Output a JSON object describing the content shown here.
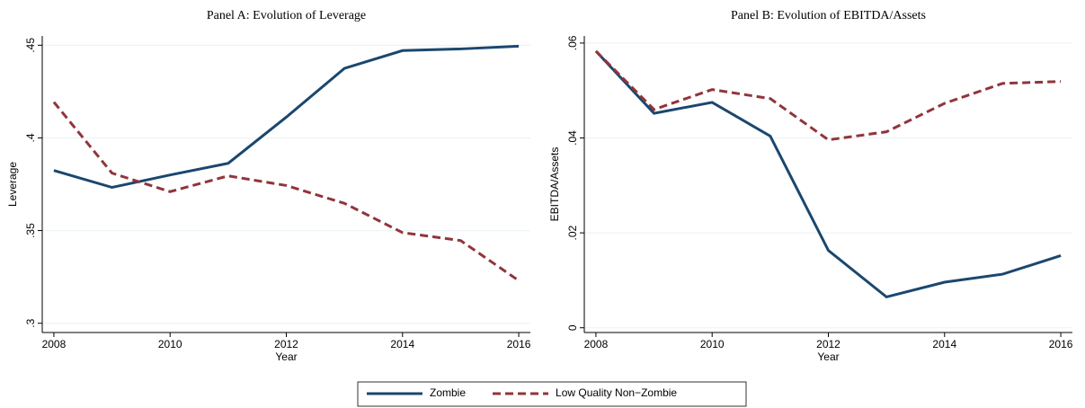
{
  "chart_data": [
    {
      "type": "line",
      "title": "Panel A: Evolution of Leverage",
      "xlabel": "Year",
      "ylabel": "Leverage",
      "x": [
        2008,
        2009,
        2010,
        2011,
        2012,
        2013,
        2014,
        2015,
        2016
      ],
      "xlim": [
        2007.8,
        2016.2
      ],
      "xticks": [
        2008,
        2010,
        2012,
        2014,
        2016
      ],
      "ylim": [
        0.295,
        0.455
      ],
      "yticks": [
        {
          "value": 0.3,
          "label": ".3"
        },
        {
          "value": 0.35,
          "label": ".35"
        },
        {
          "value": 0.4,
          "label": ".4"
        },
        {
          "value": 0.45,
          "label": ".45"
        }
      ],
      "grid": true,
      "series": [
        {
          "name": "Zombie",
          "color": "#1a476f",
          "dashed": false,
          "values": [
            0.3824,
            0.3733,
            0.38,
            0.3863,
            0.4112,
            0.4375,
            0.4471,
            0.448,
            0.4495
          ]
        },
        {
          "name": "Low Quality Non−Zombie",
          "color": "#90353b",
          "dashed": true,
          "values": [
            0.4193,
            0.381,
            0.371,
            0.3795,
            0.3743,
            0.3647,
            0.3489,
            0.3446,
            0.323
          ]
        }
      ]
    },
    {
      "type": "line",
      "title": "Panel B: Evolution of EBITDA/Assets",
      "xlabel": "Year",
      "ylabel": "EBITDA/Assets",
      "x": [
        2008,
        2009,
        2010,
        2011,
        2012,
        2013,
        2014,
        2015,
        2016
      ],
      "xlim": [
        2007.8,
        2016.2
      ],
      "xticks": [
        2008,
        2010,
        2012,
        2014,
        2016
      ],
      "ylim": [
        -0.001,
        0.0615
      ],
      "yticks": [
        0,
        {
          "value": 0.02,
          "label": ".02"
        },
        {
          "value": 0.04,
          "label": ".04"
        },
        {
          "value": 0.06,
          "label": ".06"
        }
      ],
      "grid": true,
      "series": [
        {
          "color": "#1a476f",
          "dashed": false,
          "values": [
            0.0583,
            0.0452,
            0.0475,
            0.0404,
            0.0163,
            0.0065,
            0.0096,
            0.0113,
            0.0152
          ]
        },
        {
          "color": "#90353b",
          "dashed": true,
          "values": [
            0.0583,
            0.046,
            0.0502,
            0.0483,
            0.0396,
            0.0413,
            0.0473,
            0.0515,
            0.0519
          ]
        }
      ]
    }
  ]
}
